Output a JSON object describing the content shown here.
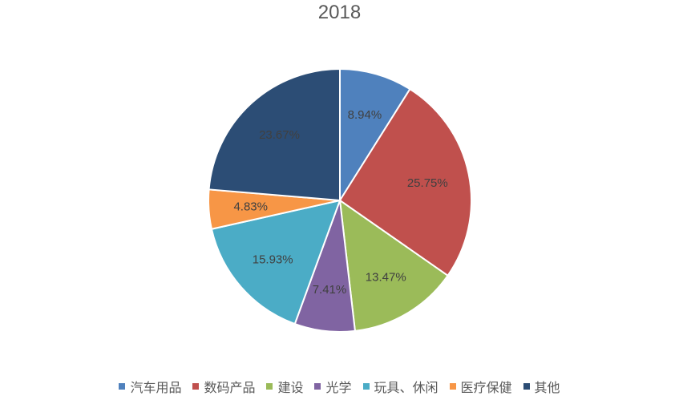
{
  "chart_data": {
    "type": "pie",
    "title": "2018",
    "categories": [
      "汽车用品",
      "数码产品",
      "建设",
      "光学",
      "玩具、休闲",
      "医疗保健",
      "其他"
    ],
    "values": [
      8.94,
      25.75,
      13.47,
      7.41,
      15.93,
      4.83,
      23.67
    ],
    "labels": [
      "8.94%",
      "25.75%",
      "13.47%",
      "7.41%",
      "15.93%",
      "4.83%",
      "23.67%"
    ],
    "colors": [
      "#4f81bd",
      "#c0504d",
      "#9bbb59",
      "#8064a2",
      "#4bacc6",
      "#f79646",
      "#2c4d75"
    ],
    "legend_position": "bottom"
  }
}
